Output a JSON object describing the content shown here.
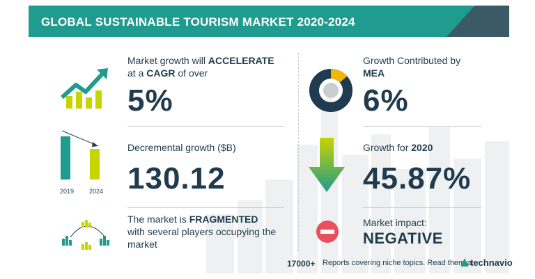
{
  "header": {
    "title": "GLOBAL SUSTAINABLE TOURISM MARKET 2020-2024"
  },
  "metrics": {
    "cagr": {
      "line1_pre": "Market growth will ",
      "line1_bold": "ACCELERATE",
      "line2_pre": "at a ",
      "line2_bold": "CAGR",
      "line2_post": " of over",
      "value": "5%"
    },
    "incremental": {
      "label": "Decremental growth ($B)",
      "value": "130.12"
    },
    "market": {
      "line1_pre": "The market is ",
      "line1_bold": "FRAGMENTED",
      "line2": "with several players occupying the",
      "line3": "market"
    },
    "region": {
      "line1": "Growth Contributed by",
      "line2_bold": "MEA",
      "value": "6%"
    },
    "yoy": {
      "label_pre": "Growth for ",
      "label_bold": "2020",
      "value": "45.87%"
    },
    "impact": {
      "label": "Market impact:",
      "value": "NEGATIVE"
    }
  },
  "bar_icon": {
    "years": [
      "2019",
      "2024"
    ]
  },
  "footer": {
    "count": "17000+",
    "text": "Reports covering niche topics. Read them at",
    "logo": "technavio"
  },
  "colors": {
    "teal": "#1f9b8f",
    "navy": "#1f3b4d",
    "lime": "#c8d400",
    "green_arrow": "#3bb38a",
    "red": "#e8505b",
    "gold": "#f2b705"
  }
}
